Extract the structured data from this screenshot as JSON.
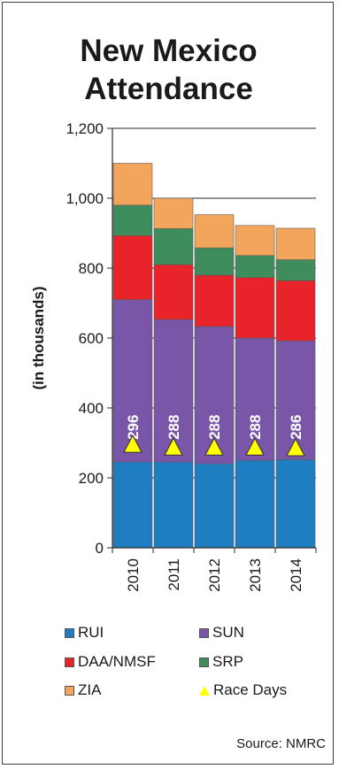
{
  "chart_data": {
    "type": "bar",
    "stacked": true,
    "title": "New Mexico Attendance",
    "title_lines": [
      "New Mexico",
      "Attendance"
    ],
    "ylabel": "(in thousands)",
    "xlabel": "",
    "ylim": [
      0,
      1200
    ],
    "yticks": [
      0,
      200,
      400,
      600,
      800,
      1000,
      1200
    ],
    "ytick_labels": [
      "0",
      "200",
      "400",
      "600",
      "800",
      "1,000",
      "1,200"
    ],
    "grid": true,
    "categories": [
      "2010",
      "2011",
      "2012",
      "2013",
      "2014"
    ],
    "series": [
      {
        "name": "RUI",
        "color": "#1f7ec1",
        "values": [
          245,
          245,
          240,
          250,
          252
        ]
      },
      {
        "name": "SUN",
        "color": "#7a56a8",
        "values": [
          465,
          408,
          393,
          350,
          340
        ]
      },
      {
        "name": "DAA/NMSF",
        "color": "#e8232a",
        "values": [
          183,
          157,
          147,
          173,
          172
        ]
      },
      {
        "name": "SRP",
        "color": "#3f8c5c",
        "values": [
          87,
          103,
          78,
          63,
          60
        ]
      },
      {
        "name": "ZIA",
        "color": "#f3a65b",
        "values": [
          120,
          87,
          95,
          86,
          90
        ]
      }
    ],
    "race_days": {
      "name": "Race Days",
      "color": "#ffff00",
      "values": [
        296,
        288,
        288,
        288,
        286
      ]
    },
    "legend_position": "bottom",
    "source": "Source: NMRC"
  }
}
